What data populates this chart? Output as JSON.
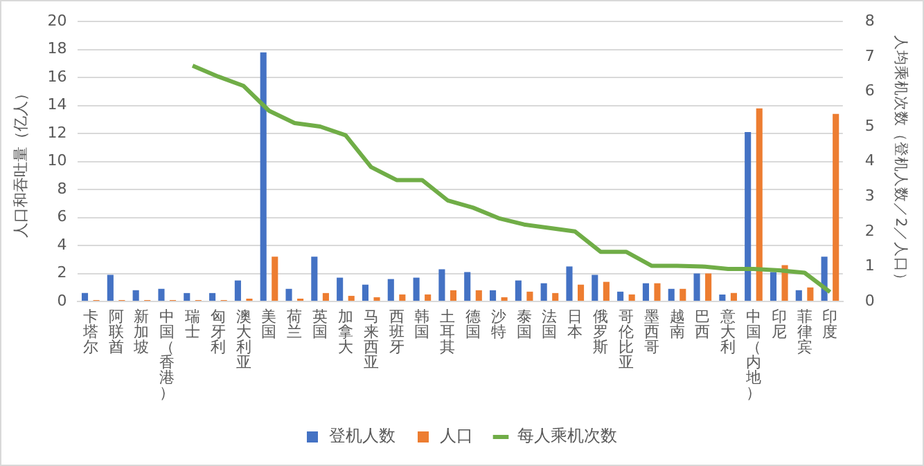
{
  "chart_data": {
    "type": "bar",
    "categories": [
      "卡塔尔",
      "阿联酋",
      "新加坡",
      "中国（香港）",
      "瑞士",
      "匈牙利",
      "澳大利亚",
      "美国",
      "荷兰",
      "英国",
      "加拿大",
      "马来西亚",
      "西班牙",
      "韩国",
      "土耳其",
      "德国",
      "沙特",
      "泰国",
      "法国",
      "日本",
      "俄罗斯",
      "哥伦比亚",
      "墨西哥",
      "越南",
      "巴西",
      "意大利",
      "中国（内地）",
      "印尼",
      "菲律宾",
      "印度"
    ],
    "series": [
      {
        "name": "登机人数",
        "type": "bar",
        "color": "#4472c4",
        "values": [
          0.6,
          1.9,
          0.8,
          0.9,
          0.6,
          0.6,
          1.5,
          17.8,
          0.9,
          3.2,
          1.7,
          1.2,
          1.6,
          1.7,
          2.3,
          2.1,
          0.8,
          1.5,
          1.3,
          2.5,
          1.9,
          0.7,
          1.3,
          0.9,
          2.0,
          0.5,
          12.1,
          2.1,
          0.8,
          3.2
        ]
      },
      {
        "name": "人口",
        "type": "bar",
        "color": "#ed7d31",
        "values": [
          0.1,
          0.1,
          0.1,
          0.1,
          0.1,
          0.1,
          0.2,
          3.2,
          0.2,
          0.6,
          0.4,
          0.3,
          0.5,
          0.5,
          0.8,
          0.8,
          0.3,
          0.7,
          0.6,
          1.2,
          1.4,
          0.5,
          1.3,
          0.9,
          2.0,
          0.6,
          13.8,
          2.6,
          1.0,
          13.4
        ]
      },
      {
        "name": "每人乘机次数",
        "type": "line",
        "axis": "y2",
        "color": "#70ad47",
        "values": [
          null,
          null,
          null,
          null,
          6.74,
          6.43,
          6.16,
          5.45,
          5.1,
          5.0,
          4.75,
          3.84,
          3.47,
          3.47,
          2.89,
          2.68,
          2.38,
          2.2,
          2.1,
          2.0,
          1.42,
          1.42,
          1.02,
          1.02,
          1.0,
          0.93,
          0.93,
          0.89,
          0.82,
          0.27
        ]
      }
    ],
    "ylabel": "人口和吞吐量（亿人）",
    "y2label": "人均乘机次数（登机人数／2／人口）",
    "ylim": [
      0,
      20
    ],
    "yticks": [
      0,
      2,
      4,
      6,
      8,
      10,
      12,
      14,
      16,
      18,
      20
    ],
    "y2lim": [
      0,
      8
    ],
    "y2ticks": [
      0,
      1,
      2,
      3,
      4,
      5,
      6,
      7,
      8
    ],
    "grid": "y",
    "legend": "bottom",
    "marker": "none",
    "line_style": "solid"
  }
}
